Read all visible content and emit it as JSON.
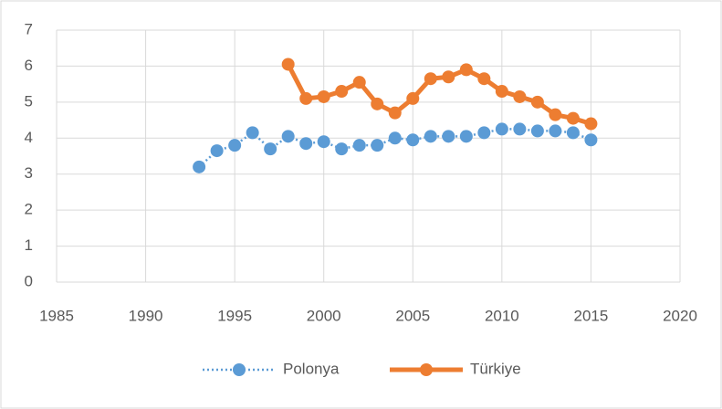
{
  "chart_data": {
    "type": "line",
    "x": [
      1993,
      1994,
      1995,
      1996,
      1997,
      1998,
      1999,
      2000,
      2001,
      2002,
      2003,
      2004,
      2005,
      2006,
      2007,
      2008,
      2009,
      2010,
      2011,
      2012,
      2013,
      2014,
      2015
    ],
    "series": [
      {
        "name": "Polonya",
        "color": "#5b9bd5",
        "dash": "dotted",
        "values": [
          3.2,
          3.65,
          3.8,
          4.15,
          3.7,
          4.05,
          3.85,
          3.9,
          3.7,
          3.8,
          3.8,
          4.0,
          3.95,
          4.05,
          4.05,
          4.05,
          4.15,
          4.25,
          4.25,
          4.2,
          4.2,
          4.15,
          3.95
        ]
      },
      {
        "name": "Türkiye",
        "color": "#ed7d31",
        "dash": "solid",
        "values": [
          null,
          null,
          null,
          null,
          null,
          6.05,
          5.1,
          5.15,
          5.3,
          5.55,
          4.95,
          4.7,
          5.1,
          5.65,
          5.7,
          5.9,
          5.65,
          5.3,
          5.15,
          5.0,
          4.65,
          4.55,
          4.4
        ]
      }
    ],
    "xlim": [
      1985,
      2020
    ],
    "xticks": [
      1985,
      1990,
      1995,
      2000,
      2005,
      2010,
      2015,
      2020
    ],
    "ylim": [
      0,
      7
    ],
    "yticks": [
      0,
      1,
      2,
      3,
      4,
      5,
      6,
      7
    ],
    "grid": true,
    "legend": "bottom"
  }
}
